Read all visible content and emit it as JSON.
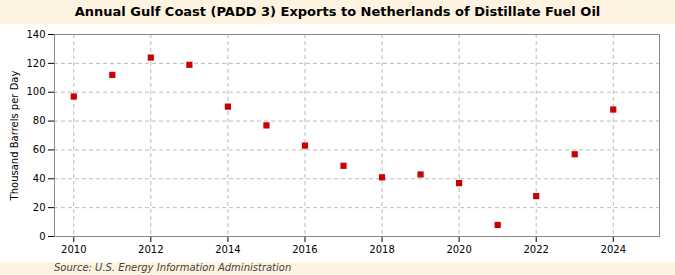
{
  "chart_data": {
    "type": "scatter",
    "title": "Annual Gulf Coast (PADD 3) Exports to Netherlands of Distillate Fuel Oil",
    "ylabel": "Thousand Barrels per Day",
    "source": "Source: U.S. Energy Information Administration",
    "x": [
      2010,
      2011,
      2012,
      2013,
      2014,
      2015,
      2016,
      2017,
      2018,
      2019,
      2020,
      2021,
      2022,
      2023,
      2024
    ],
    "values": [
      97,
      112,
      124,
      119,
      90,
      77,
      63,
      49,
      41,
      43,
      37,
      8,
      28,
      57,
      88
    ],
    "color": "#cc0000",
    "marker": "square",
    "xlim": [
      2009.5,
      2025.2
    ],
    "ylim": [
      0,
      140
    ],
    "xticks": [
      2010,
      2012,
      2014,
      2016,
      2018,
      2020,
      2022,
      2024
    ],
    "yticks": [
      0,
      20,
      40,
      60,
      80,
      100,
      120,
      140
    ],
    "grid": true
  }
}
